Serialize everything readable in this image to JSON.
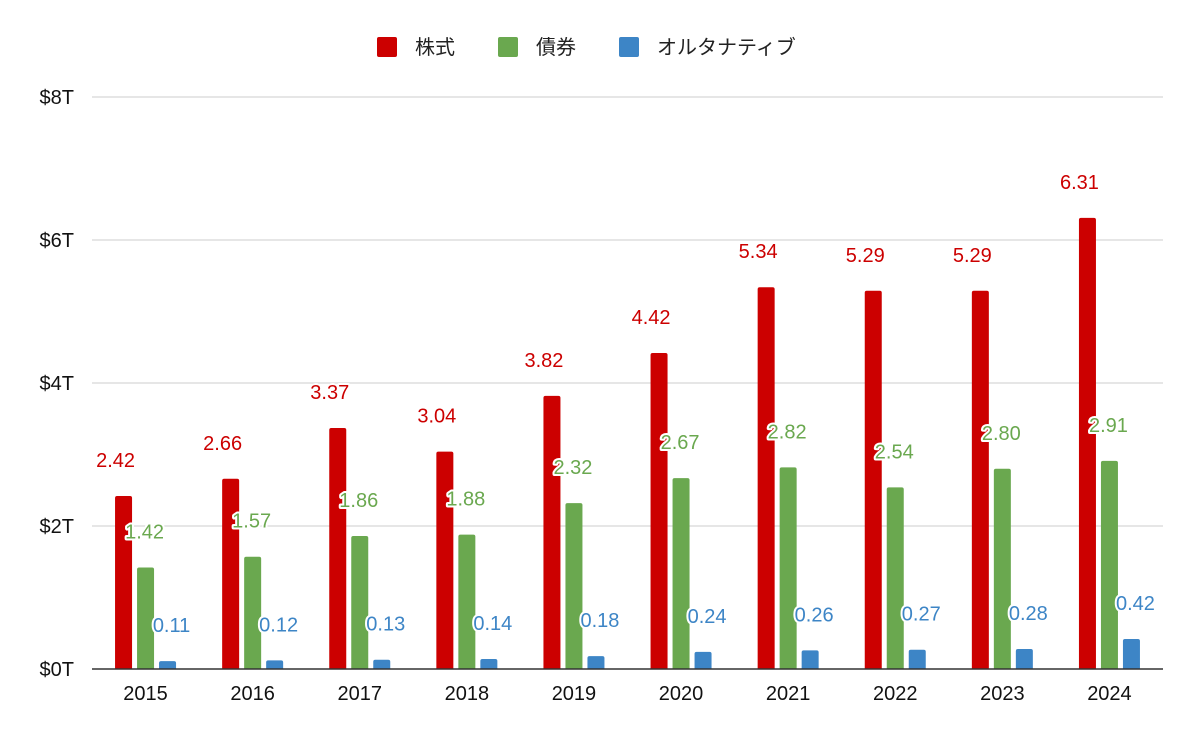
{
  "chart_data": {
    "type": "bar",
    "categories": [
      "2015",
      "2016",
      "2017",
      "2018",
      "2019",
      "2020",
      "2021",
      "2022",
      "2023",
      "2024"
    ],
    "series": [
      {
        "name": "株式",
        "color": "#cc0000",
        "values": [
          2.42,
          2.66,
          3.37,
          3.04,
          3.82,
          4.42,
          5.34,
          5.29,
          5.29,
          6.31
        ],
        "labels": [
          "2.42",
          "2.66",
          "3.37",
          "3.04",
          "3.82",
          "4.42",
          "5.34",
          "5.29",
          "5.29",
          "6.31"
        ]
      },
      {
        "name": "債券",
        "color": "#6aa84f",
        "values": [
          1.42,
          1.57,
          1.86,
          1.88,
          2.32,
          2.67,
          2.82,
          2.54,
          2.8,
          2.91
        ],
        "labels": [
          "1.42",
          "1.57",
          "1.86",
          "1.88",
          "2.32",
          "2.67",
          "2.82",
          "2.54",
          "2.80",
          "2.91"
        ]
      },
      {
        "name": "オルタナティブ",
        "color": "#3d85c6",
        "values": [
          0.11,
          0.12,
          0.13,
          0.14,
          0.18,
          0.24,
          0.26,
          0.27,
          0.28,
          0.42
        ],
        "labels": [
          "0.11",
          "0.12",
          "0.13",
          "0.14",
          "0.18",
          "0.24",
          "0.26",
          "0.27",
          "0.28",
          "0.42"
        ]
      }
    ],
    "ylim": [
      0,
      8
    ],
    "yticks": [
      0,
      2,
      4,
      6,
      8
    ],
    "ytick_labels": [
      "$0T",
      "$2T",
      "$4T",
      "$6T",
      "$8T"
    ],
    "legend_position": "top-center",
    "grid": true,
    "axis_color": "#333333",
    "grid_color": "#cccccc"
  }
}
